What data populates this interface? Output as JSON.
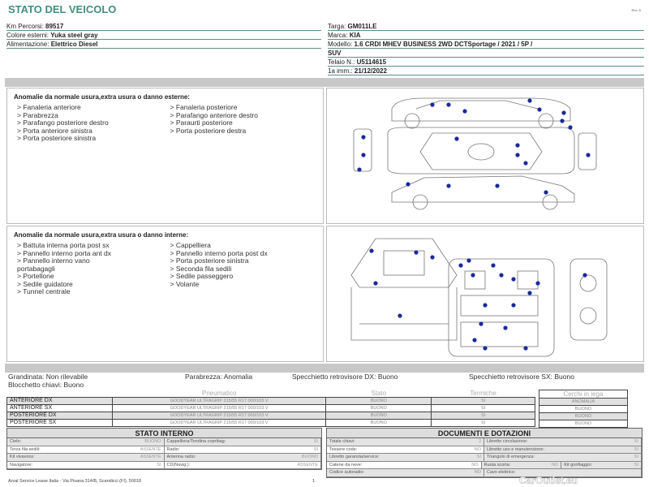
{
  "header": {
    "title": "STATO DEL VEICOLO",
    "rev": "Rev. A"
  },
  "vehicle_left": [
    {
      "label": "Km Percorsi:",
      "value": "89517"
    },
    {
      "label": "Colore esterni:",
      "value": "Yuka steel gray"
    },
    {
      "label": "Alimentazione:",
      "value": "Elettrico Diesel"
    }
  ],
  "vehicle_right": [
    {
      "label": "Targa:",
      "value": "GM011LE"
    },
    {
      "label": "Marca:",
      "value": "KIA"
    },
    {
      "label": "Modello:",
      "value": "1.6 CRDI MHEV BUSINESS 2WD DCTSportage / 2021 / 5P /"
    },
    {
      "label": "",
      "value": "SUV"
    },
    {
      "label": "Telaio N.:",
      "value": "U5114615"
    },
    {
      "label": "1a imm.:",
      "value": "21/12/2022"
    }
  ],
  "external": {
    "heading": "Anomalie da normale usura,extra usura o danno esterne:",
    "col1": [
      "> Fanaleria anteriore",
      "> Parabrezza",
      "> Parafango posteriore destro",
      "> Porta anteriore sinistra",
      "> Porta posteriore sinistra"
    ],
    "col2": [
      "> Fanaleria posteriore",
      "> Parafango anteriore destro",
      "> Paraurti posteriore",
      "> Porta posteriore destra"
    ]
  },
  "internal": {
    "heading": "Anomalie da normale usura,extra usura o danno interne:",
    "col1": [
      "> Battuta interna porta post sx",
      "> Pannello interno porta ant dx",
      "> Pannello interno vano",
      "portabagagli",
      "> Portellone",
      "> Sedile guidatore",
      "> Tunnel centrale"
    ],
    "col2": [
      "> Cappelliera",
      "> Pannello interno porta post dx",
      "> Porta posteriore sinistra",
      "> Seconda fila sedili",
      "> Sedile passeggero",
      "> Volante"
    ]
  },
  "summary": {
    "grandinata": "Grandinata: Non rilevabile",
    "blocchetto": "Blocchetto chiavi: Buono",
    "parabrezza": "Parabrezza: Anomalia",
    "spec_dx": "Specchietto retrovisore DX: Buono",
    "spec_sx": "Specchietto retrovisore SX: Buono"
  },
  "tyres": {
    "headers": [
      "Pneumatico",
      "Stato",
      "Termiche"
    ],
    "rows": [
      {
        "pos": "ANTERIORE DX",
        "tyre": "GOODYEAR ULTRAGRIP 215/55 R17 000/103 V",
        "stato": "BUONO",
        "termiche": "SI"
      },
      {
        "pos": "ANTERIORE SX",
        "tyre": "GOODYEAR ULTRAGRIP 215/55 R17 000/103 V",
        "stato": "BUONO",
        "termiche": "SI"
      },
      {
        "pos": "POSTERIORE DX",
        "tyre": "GOODYEAR ULTRAGRIP 215/55 R17 000/103 V",
        "stato": "BUONO",
        "termiche": "SI"
      },
      {
        "pos": "POSTERIORE SX",
        "tyre": "GOODYEAR ULTRAGRIP 215/55 R17 000/103 V",
        "stato": "BUONO",
        "termiche": "SI"
      }
    ],
    "cerchi_header": "Cerchi in lega",
    "cerchi": [
      "ANOMALIA",
      "BUONO",
      "BUONO",
      "BUONO"
    ]
  },
  "stato_interno": {
    "title": "STATO INTERNO",
    "rows": [
      [
        [
          "Cielo:",
          "BUONO"
        ],
        [
          "Cappelliera/Tendina copribag:",
          "SI"
        ]
      ],
      [
        [
          "Terza fila sedili:",
          "ASSENTE"
        ],
        [
          "Radio:",
          "SI"
        ]
      ],
      [
        [
          "Kit vivavoce:",
          "ASSENTE"
        ],
        [
          "Antenna radio:",
          "BUONO"
        ]
      ],
      [
        [
          "Navigatore:",
          "SI"
        ],
        [
          "CD(Navig.):",
          "ASSENTE"
        ]
      ]
    ]
  },
  "documenti": {
    "title": "DOCUMENTI E DOTAZIONI",
    "rows": [
      [
        [
          "Totale chiavi:",
          "2"
        ],
        [
          "Libretto circolazione:",
          "SI"
        ]
      ],
      [
        [
          "Tessere code:",
          "NO"
        ],
        [
          "Libretto uso e manutenzione:",
          "SI"
        ]
      ],
      [
        [
          "Libretto garanzia/service:",
          "SI"
        ],
        [
          "Triangolo di emergenza:",
          "SI"
        ]
      ],
      [
        [
          "Catene da neve:",
          "NO"
        ],
        [
          "Ruota scorta:",
          "NO"
        ],
        [
          "Kit gonfiaggio:",
          "SI"
        ]
      ],
      [
        [
          "Codice autoradio:",
          "NO"
        ],
        [
          "Cavo elettrico:",
          ""
        ]
      ]
    ]
  },
  "footer": {
    "address": "Arval Service Lease Italia - Via Pisana 314/B, Scandicci (FI), 50018",
    "page": "1"
  },
  "watermark": "CarOutlet.eu",
  "colors": {
    "title": "#3f8f80",
    "damage_dot": "#1a2a9a"
  }
}
